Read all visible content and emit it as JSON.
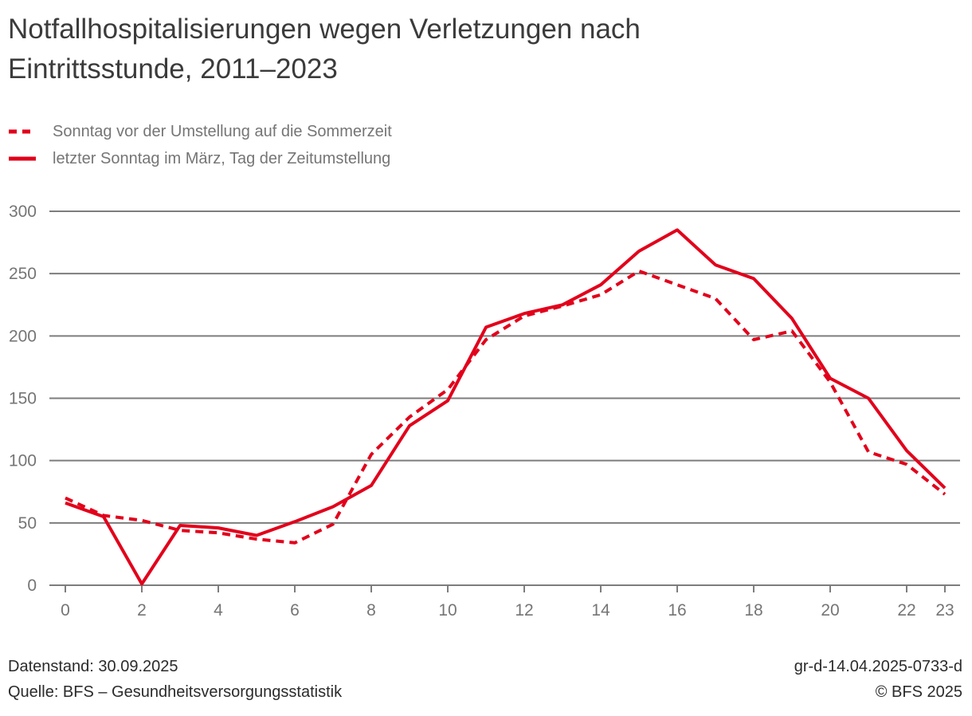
{
  "title_lines": [
    "Notfallhospitalisierungen wegen Verletzungen nach",
    "Eintrittsstunde, 2011–2023"
  ],
  "legend": [
    {
      "label": "Sonntag vor der Umstellung auf die Sommerzeit",
      "style": "dashed"
    },
    {
      "label": "letzter Sonntag im März, Tag der Zeitumstellung",
      "style": "solid"
    }
  ],
  "footer": {
    "datenstand": "Datenstand: 30.09.2025",
    "quelle": "Quelle: BFS – Gesundheitsversorgungsstatistik",
    "graph_id": "gr-d-14.04.2025-0733-d",
    "copyright": "© BFS 2025"
  },
  "colors": {
    "series_red": "#e2001b",
    "grid": "#7d7d7d",
    "axis_text": "#757575",
    "title_text": "#3b3b3b",
    "legend_text": "#757575",
    "footer_text": "#2b2b2b"
  },
  "chart_data": {
    "type": "line",
    "title": "Notfallhospitalisierungen wegen Verletzungen nach Eintrittsstunde, 2011–2023",
    "xlabel": "",
    "ylabel": "",
    "x": [
      0,
      1,
      2,
      3,
      4,
      5,
      6,
      7,
      8,
      9,
      10,
      11,
      12,
      13,
      14,
      15,
      16,
      17,
      18,
      19,
      20,
      21,
      22,
      23
    ],
    "x_tick_labels": [
      0,
      2,
      4,
      6,
      8,
      10,
      12,
      14,
      16,
      18,
      20,
      22,
      23
    ],
    "ylim": [
      0,
      300
    ],
    "yticks": [
      0,
      50,
      100,
      150,
      200,
      250,
      300
    ],
    "grid": "horizontal",
    "legend_position": "top-left",
    "series": [
      {
        "name": "Sonntag vor der Umstellung auf die Sommerzeit",
        "style": "dashed",
        "values": [
          70,
          56,
          52,
          44,
          42,
          37,
          34,
          49,
          105,
          135,
          157,
          197,
          216,
          224,
          233,
          252,
          241,
          230,
          197,
          204,
          163,
          107,
          97,
          73
        ]
      },
      {
        "name": "letzter Sonntag im März, Tag der Zeitumstellung",
        "style": "solid",
        "values": [
          66,
          55,
          1,
          48,
          46,
          40,
          51,
          63,
          80,
          128,
          148,
          207,
          218,
          225,
          241,
          268,
          285,
          257,
          246,
          214,
          166,
          150,
          108,
          78
        ]
      }
    ]
  }
}
